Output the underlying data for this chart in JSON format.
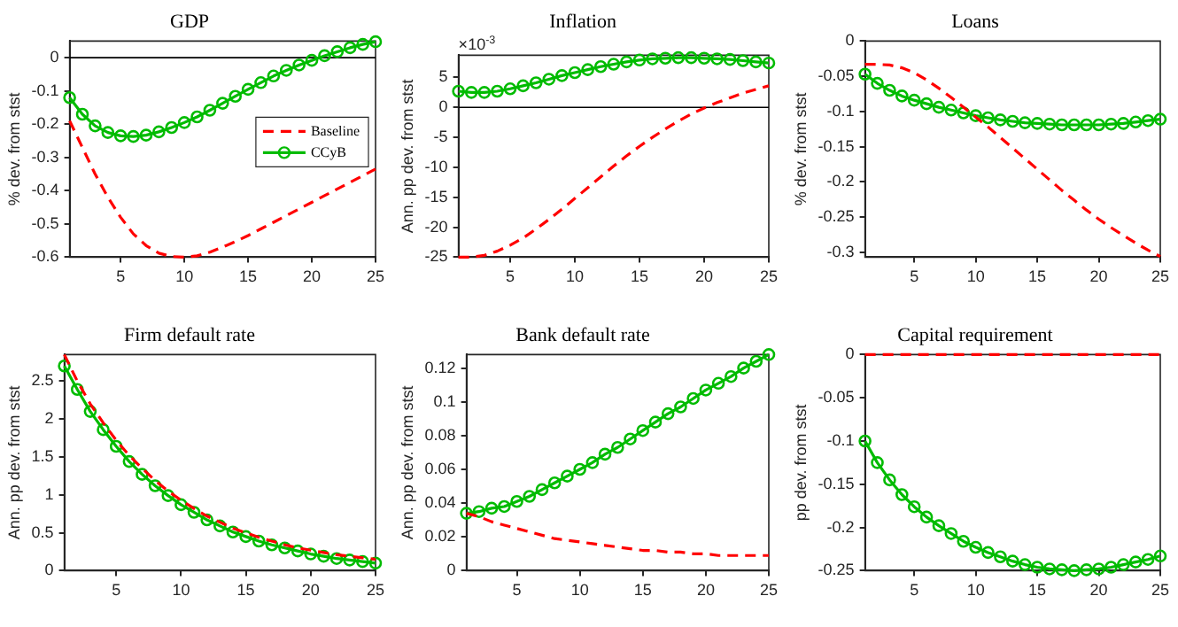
{
  "chart_data": [
    {
      "type": "line",
      "title": "GDP",
      "ylabel": "% dev. from stst",
      "x": [
        1,
        2,
        3,
        4,
        5,
        6,
        7,
        8,
        9,
        10,
        11,
        12,
        13,
        14,
        15,
        16,
        17,
        18,
        19,
        20,
        21,
        22,
        23,
        24,
        25
      ],
      "xlim": [
        1,
        25
      ],
      "xticks": [
        5,
        10,
        15,
        20,
        25
      ],
      "ylim": [
        -0.6,
        0.05
      ],
      "yticks": [
        -0.6,
        -0.5,
        -0.4,
        -0.3,
        -0.2,
        -0.1,
        0
      ],
      "grid": false,
      "legend": "right",
      "ref_lines": [
        {
          "axis": "y",
          "value": 0,
          "color": "#000000"
        }
      ],
      "series": [
        {
          "name": "Baseline",
          "color": "#ff0000",
          "line_style": "dashed",
          "marker": "none",
          "values": [
            -0.19,
            -0.27,
            -0.35,
            -0.42,
            -0.48,
            -0.53,
            -0.565,
            -0.588,
            -0.598,
            -0.6,
            -0.596,
            -0.585,
            -0.57,
            -0.553,
            -0.535,
            -0.515,
            -0.495,
            -0.475,
            -0.455,
            -0.435,
            -0.415,
            -0.395,
            -0.375,
            -0.355,
            -0.335
          ]
        },
        {
          "name": "CCyB",
          "color": "#00bb00",
          "line_style": "solid",
          "marker": "circle",
          "values": [
            -0.12,
            -0.17,
            -0.205,
            -0.225,
            -0.235,
            -0.237,
            -0.233,
            -0.223,
            -0.21,
            -0.195,
            -0.178,
            -0.158,
            -0.137,
            -0.116,
            -0.095,
            -0.075,
            -0.055,
            -0.038,
            -0.022,
            -0.008,
            0.006,
            0.018,
            0.03,
            0.04,
            0.048
          ]
        }
      ]
    },
    {
      "type": "line",
      "title": "Inflation",
      "ylabel": "Ann. pp dev. from stst",
      "annotations": [
        "×10$^{-3}$"
      ],
      "x": [
        1,
        2,
        3,
        4,
        5,
        6,
        7,
        8,
        9,
        10,
        11,
        12,
        13,
        14,
        15,
        16,
        17,
        18,
        19,
        20,
        21,
        22,
        23,
        24,
        25
      ],
      "xlim": [
        1,
        25
      ],
      "xticks": [
        5,
        10,
        15,
        20,
        25
      ],
      "ylim": [
        -25,
        8.7
      ],
      "yticks": [
        -25,
        -20,
        -15,
        -10,
        -5,
        0,
        5
      ],
      "grid": false,
      "ref_lines": [
        {
          "axis": "y",
          "value": 0,
          "color": "#000000"
        }
      ],
      "series": [
        {
          "color": "#ff0000",
          "line_style": "dashed",
          "marker": "none",
          "values": [
            -25,
            -25,
            -24.7,
            -24,
            -23,
            -21.8,
            -20.3,
            -18.7,
            -17,
            -15.2,
            -13.4,
            -11.6,
            -9.8,
            -8.1,
            -6.5,
            -5,
            -3.6,
            -2.3,
            -1.1,
            -0.1,
            0.8,
            1.6,
            2.4,
            3,
            3.6
          ]
        },
        {
          "color": "#00bb00",
          "line_style": "solid",
          "marker": "circle",
          "values": [
            2.7,
            2.5,
            2.5,
            2.7,
            3.1,
            3.6,
            4.1,
            4.7,
            5.3,
            5.8,
            6.3,
            6.8,
            7.2,
            7.6,
            7.9,
            8.1,
            8.2,
            8.3,
            8.3,
            8.2,
            8.1,
            8,
            7.8,
            7.6,
            7.4
          ]
        }
      ]
    },
    {
      "type": "line",
      "title": "Loans",
      "ylabel": "% dev. from stst",
      "x": [
        1,
        2,
        3,
        4,
        5,
        6,
        7,
        8,
        9,
        10,
        11,
        12,
        13,
        14,
        15,
        16,
        17,
        18,
        19,
        20,
        21,
        22,
        23,
        24,
        25
      ],
      "xlim": [
        1,
        25
      ],
      "xticks": [
        5,
        10,
        15,
        20,
        25
      ],
      "ylim": [
        -0.307,
        0
      ],
      "yticks": [
        -0.3,
        -0.25,
        -0.2,
        -0.15,
        -0.1,
        -0.05,
        0
      ],
      "grid": false,
      "series": [
        {
          "color": "#ff0000",
          "line_style": "dashed",
          "marker": "none",
          "values": [
            -0.033,
            -0.033,
            -0.034,
            -0.038,
            -0.045,
            -0.055,
            -0.067,
            -0.08,
            -0.094,
            -0.108,
            -0.122,
            -0.137,
            -0.152,
            -0.167,
            -0.182,
            -0.197,
            -0.212,
            -0.226,
            -0.24,
            -0.253,
            -0.265,
            -0.276,
            -0.287,
            -0.297,
            -0.306
          ]
        },
        {
          "color": "#00bb00",
          "line_style": "solid",
          "marker": "circle",
          "values": [
            -0.047,
            -0.06,
            -0.07,
            -0.078,
            -0.084,
            -0.089,
            -0.094,
            -0.098,
            -0.102,
            -0.106,
            -0.109,
            -0.112,
            -0.114,
            -0.116,
            -0.117,
            -0.118,
            -0.119,
            -0.119,
            -0.119,
            -0.119,
            -0.118,
            -0.117,
            -0.115,
            -0.113,
            -0.111
          ]
        }
      ]
    },
    {
      "type": "line",
      "title": "Firm default rate",
      "ylabel": "Ann. pp dev. from stst",
      "x": [
        1,
        2,
        3,
        4,
        5,
        6,
        7,
        8,
        9,
        10,
        11,
        12,
        13,
        14,
        15,
        16,
        17,
        18,
        19,
        20,
        21,
        22,
        23,
        24,
        25
      ],
      "xlim": [
        1,
        25
      ],
      "xticks": [
        5,
        10,
        15,
        20,
        25
      ],
      "ylim": [
        0,
        2.85
      ],
      "yticks": [
        0,
        0.5,
        1,
        1.5,
        2,
        2.5
      ],
      "grid": false,
      "series": [
        {
          "color": "#ff0000",
          "line_style": "dashed",
          "marker": "none",
          "values": [
            2.85,
            2.5,
            2.2,
            1.95,
            1.72,
            1.52,
            1.35,
            1.19,
            1.05,
            0.93,
            0.82,
            0.72,
            0.64,
            0.56,
            0.5,
            0.44,
            0.39,
            0.34,
            0.3,
            0.27,
            0.24,
            0.21,
            0.19,
            0.17,
            0.15
          ]
        },
        {
          "color": "#00bb00",
          "line_style": "solid",
          "marker": "circle",
          "values": [
            2.7,
            2.39,
            2.1,
            1.86,
            1.64,
            1.44,
            1.27,
            1.12,
            0.99,
            0.87,
            0.77,
            0.67,
            0.59,
            0.51,
            0.45,
            0.39,
            0.34,
            0.3,
            0.26,
            0.22,
            0.19,
            0.16,
            0.14,
            0.12,
            0.1
          ]
        }
      ]
    },
    {
      "type": "line",
      "title": "Bank default rate",
      "ylabel": "Ann. pp dev. from stst",
      "x": [
        1,
        2,
        3,
        4,
        5,
        6,
        7,
        8,
        9,
        10,
        11,
        12,
        13,
        14,
        15,
        16,
        17,
        18,
        19,
        20,
        21,
        22,
        23,
        24,
        25
      ],
      "xlim": [
        1,
        25
      ],
      "xticks": [
        5,
        10,
        15,
        20,
        25
      ],
      "ylim": [
        0,
        0.128
      ],
      "yticks": [
        0,
        0.02,
        0.04,
        0.06,
        0.08,
        0.1,
        0.12
      ],
      "grid": false,
      "series": [
        {
          "color": "#ff0000",
          "line_style": "dashed",
          "marker": "none",
          "values": [
            0.034,
            0.032,
            0.029,
            0.027,
            0.025,
            0.023,
            0.021,
            0.019,
            0.018,
            0.017,
            0.016,
            0.015,
            0.014,
            0.013,
            0.012,
            0.012,
            0.011,
            0.011,
            0.01,
            0.01,
            0.009,
            0.009,
            0.009,
            0.009,
            0.009
          ]
        },
        {
          "color": "#00bb00",
          "line_style": "solid",
          "marker": "circle",
          "values": [
            0.034,
            0.035,
            0.037,
            0.038,
            0.041,
            0.044,
            0.048,
            0.052,
            0.056,
            0.06,
            0.064,
            0.069,
            0.073,
            0.078,
            0.083,
            0.088,
            0.093,
            0.097,
            0.102,
            0.107,
            0.111,
            0.115,
            0.12,
            0.124,
            0.128
          ]
        }
      ]
    },
    {
      "type": "line",
      "title": "Capital requirement",
      "ylabel": "pp dev. from stst",
      "x": [
        1,
        2,
        3,
        4,
        5,
        6,
        7,
        8,
        9,
        10,
        11,
        12,
        13,
        14,
        15,
        16,
        17,
        18,
        19,
        20,
        21,
        22,
        23,
        24,
        25
      ],
      "xlim": [
        1,
        25
      ],
      "xticks": [
        5,
        10,
        15,
        20,
        25
      ],
      "ylim": [
        -0.25,
        0
      ],
      "yticks": [
        -0.25,
        -0.2,
        -0.15,
        -0.1,
        -0.05,
        0
      ],
      "grid": false,
      "series": [
        {
          "color": "#ff0000",
          "line_style": "dashed",
          "marker": "none",
          "values": [
            0,
            0,
            0,
            0,
            0,
            0,
            0,
            0,
            0,
            0,
            0,
            0,
            0,
            0,
            0,
            0,
            0,
            0,
            0,
            0,
            0,
            0,
            0,
            0,
            0
          ]
        },
        {
          "color": "#00bb00",
          "line_style": "solid",
          "marker": "circle",
          "values": [
            -0.1,
            -0.125,
            -0.145,
            -0.162,
            -0.176,
            -0.188,
            -0.198,
            -0.207,
            -0.216,
            -0.223,
            -0.229,
            -0.234,
            -0.239,
            -0.243,
            -0.246,
            -0.248,
            -0.249,
            -0.25,
            -0.249,
            -0.248,
            -0.246,
            -0.243,
            -0.24,
            -0.237,
            -0.233
          ]
        }
      ]
    }
  ]
}
